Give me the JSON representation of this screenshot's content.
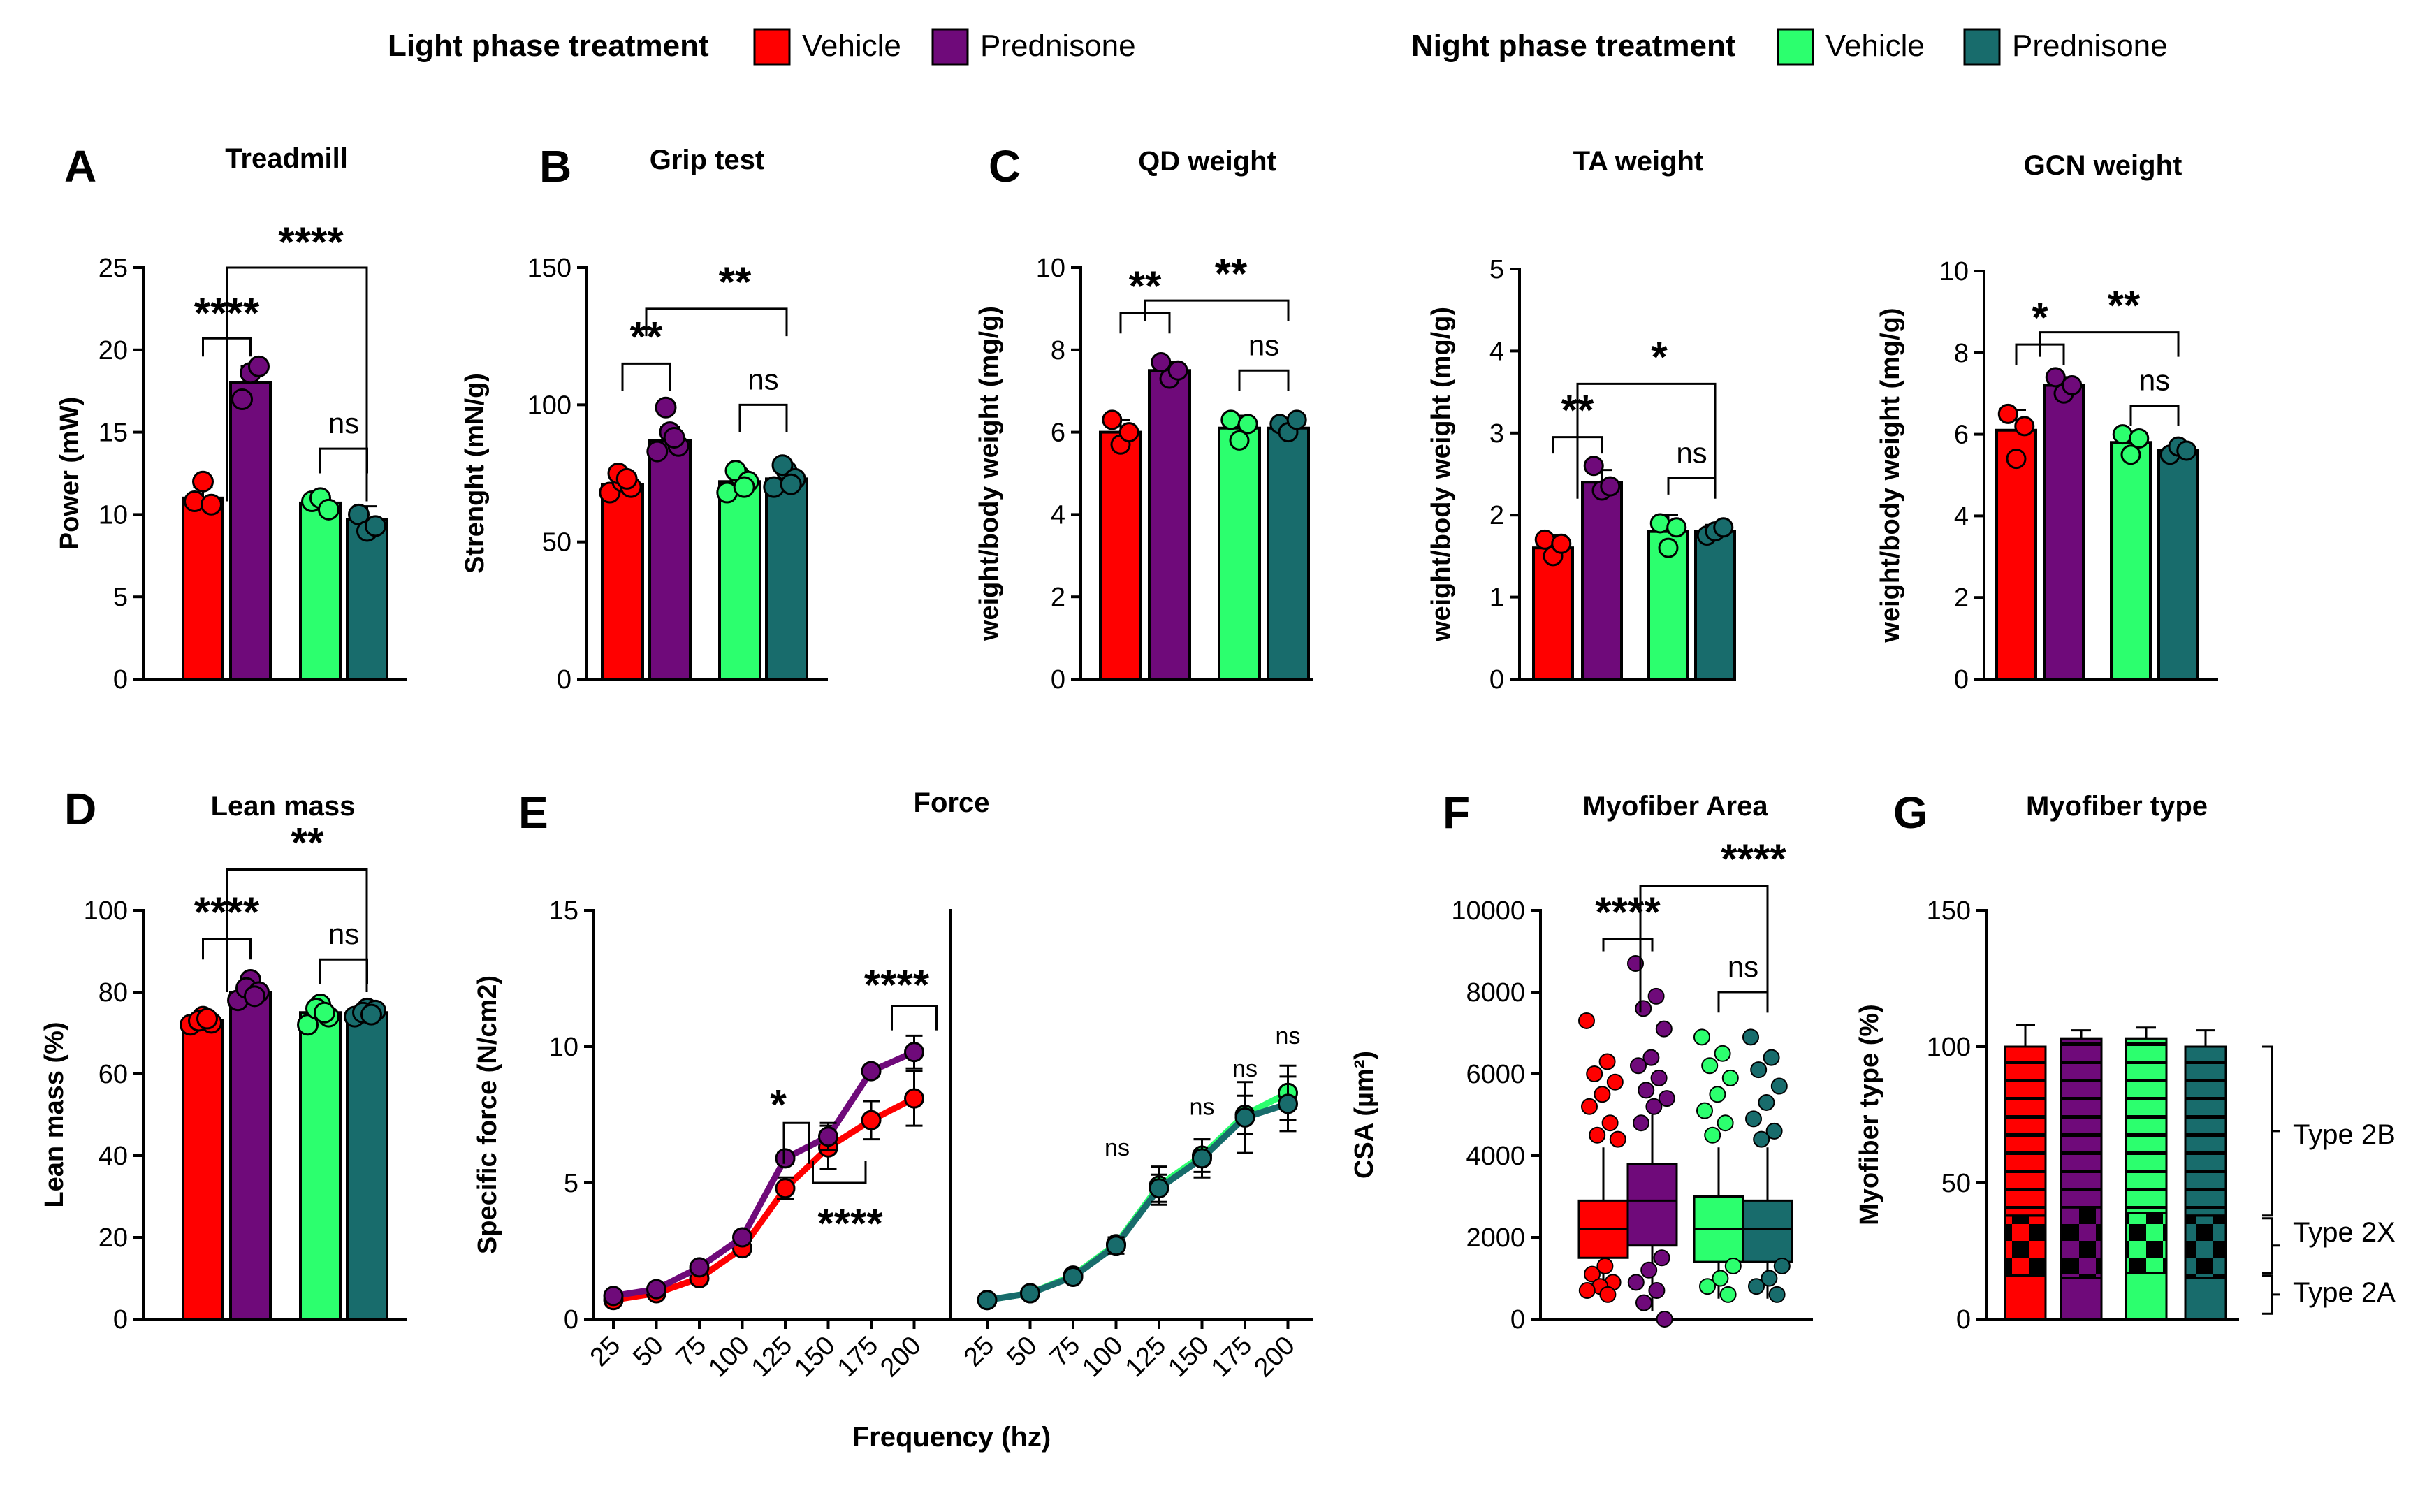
{
  "legend": {
    "light_title": "Light phase treatment",
    "night_title": "Night phase treatment",
    "items": [
      {
        "label": "Vehicle",
        "color": "#ff0000"
      },
      {
        "label": "Prednisone",
        "color": "#6f0a7a"
      },
      {
        "label": "Vehicle",
        "color": "#2cff6e"
      },
      {
        "label": "Prednisone",
        "color": "#186c6c"
      }
    ]
  },
  "colors": {
    "light_vehicle": "#ff0000",
    "light_prednisone": "#6f0a7a",
    "night_vehicle": "#2cff6e",
    "night_prednisone": "#186c6c"
  },
  "panel_letters": [
    "A",
    "B",
    "C",
    "D",
    "E",
    "F",
    "G"
  ],
  "chart_data": [
    {
      "id": "treadmill",
      "type": "bar",
      "letter": "A",
      "title": "Treadmill",
      "ylabel": "Power (mW)",
      "ylim": [
        0,
        25
      ],
      "yticks": [
        "0",
        "5",
        "10",
        "15",
        "20",
        "25"
      ],
      "values": [
        11,
        18,
        10.7,
        9.7
      ],
      "errors": [
        0.7,
        1.0,
        0.4,
        0.8
      ],
      "points": [
        [
          10.8,
          12.0,
          10.6
        ],
        [
          17.0,
          18.6,
          19.0
        ],
        [
          10.8,
          11.0,
          10.3
        ],
        [
          10.0,
          9.0,
          9.3
        ]
      ],
      "annotations": [
        "****",
        "****",
        "ns"
      ]
    },
    {
      "id": "grip",
      "type": "bar",
      "letter": "B",
      "title": "Grip test",
      "ylabel": "Strenght (mN/g)",
      "ylim": [
        0,
        150
      ],
      "yticks": [
        "0",
        "50",
        "100",
        "150"
      ],
      "values": [
        71,
        87,
        72,
        73
      ],
      "errors": [
        3,
        5,
        3,
        3
      ],
      "points": [
        [
          68,
          72,
          75,
          70,
          73
        ],
        [
          83,
          90,
          99,
          85,
          88
        ],
        [
          68,
          74,
          76,
          72,
          70
        ],
        [
          70,
          76,
          78,
          73,
          71
        ]
      ],
      "annotations": [
        "**",
        "**",
        "ns"
      ]
    },
    {
      "id": "qd",
      "type": "bar",
      "letter": "C",
      "title": "QD weight",
      "ylabel": "weight/body weight (mg/g)",
      "ylim": [
        0,
        10
      ],
      "yticks": [
        "0",
        "2",
        "4",
        "6",
        "8",
        "10"
      ],
      "values": [
        6.0,
        7.5,
        6.1,
        6.1
      ],
      "errors": [
        0.3,
        0.2,
        0.3,
        0.2
      ],
      "points": [
        [
          6.3,
          5.7,
          6.0
        ],
        [
          7.7,
          7.3,
          7.5
        ],
        [
          6.3,
          5.8,
          6.2
        ],
        [
          6.2,
          6.0,
          6.3
        ]
      ],
      "annotations": [
        "**",
        "**",
        "ns"
      ]
    },
    {
      "id": "ta",
      "type": "bar",
      "letter": "",
      "title": "TA weight",
      "ylabel": "weight/body weight (mg/g)",
      "ylim": [
        0,
        5
      ],
      "yticks": [
        "0",
        "1",
        "2",
        "3",
        "4",
        "5"
      ],
      "values": [
        1.6,
        2.4,
        1.8,
        1.8
      ],
      "errors": [
        0.15,
        0.15,
        0.2,
        0.08
      ],
      "points": [
        [
          1.7,
          1.5,
          1.65
        ],
        [
          2.6,
          2.3,
          2.35
        ],
        [
          1.9,
          1.6,
          1.85
        ],
        [
          1.75,
          1.8,
          1.85
        ]
      ],
      "annotations": [
        "**",
        "*",
        "ns"
      ]
    },
    {
      "id": "gcn",
      "type": "bar",
      "letter": "",
      "title": "GCN weight",
      "ylabel": "weight/body weight (mg/g)",
      "ylim": [
        0,
        10
      ],
      "yticks": [
        "0",
        "2",
        "4",
        "6",
        "8",
        "10"
      ],
      "values": [
        6.1,
        7.2,
        5.8,
        5.6
      ],
      "errors": [
        0.5,
        0.2,
        0.25,
        0.15
      ],
      "points": [
        [
          6.5,
          5.4,
          6.2
        ],
        [
          7.4,
          7.0,
          7.2
        ],
        [
          6.0,
          5.5,
          5.9
        ],
        [
          5.5,
          5.7,
          5.6
        ]
      ],
      "annotations": [
        "*",
        "**",
        "ns"
      ]
    },
    {
      "id": "lean",
      "type": "bar",
      "letter": "D",
      "title": "Lean mass",
      "ylabel": "Lean mass (%)",
      "ylim": [
        0,
        100
      ],
      "yticks": [
        "0",
        "20",
        "40",
        "60",
        "80",
        "100"
      ],
      "values": [
        73,
        80,
        75,
        75
      ],
      "errors": [
        1,
        2,
        2,
        1
      ],
      "points": [
        [
          72,
          74,
          73,
          72.5,
          73.5
        ],
        [
          78,
          83,
          81,
          80,
          79
        ],
        [
          72,
          77,
          76,
          74,
          75
        ],
        [
          74,
          76,
          75,
          75.5,
          74.5
        ]
      ],
      "annotations": [
        "****",
        "**",
        "ns"
      ]
    },
    {
      "id": "force",
      "type": "line",
      "letter": "E",
      "title": "Force",
      "ylabel": "Specific force (N/cm2)",
      "xlabel": "Frequency (hz)",
      "ylim": [
        0,
        15
      ],
      "yticks": [
        "0",
        "5",
        "10",
        "15"
      ],
      "x": [
        "25",
        "50",
        "75",
        "100",
        "125",
        "150",
        "175",
        "200"
      ],
      "series": [
        {
          "group": "light",
          "color": "#ff0000",
          "values": [
            0.7,
            0.95,
            1.5,
            2.6,
            4.8,
            6.3,
            7.3,
            8.1
          ],
          "errors": [
            0.1,
            0.1,
            0.2,
            0.2,
            0.4,
            0.8,
            0.7,
            1.0
          ]
        },
        {
          "group": "light",
          "color": "#6f0a7a",
          "values": [
            0.85,
            1.1,
            1.9,
            3.0,
            5.9,
            6.7,
            9.1,
            9.8
          ],
          "errors": [
            0.1,
            0.1,
            0.1,
            0.2,
            0.2,
            0.5,
            0.2,
            0.6
          ]
        },
        {
          "group": "night",
          "color": "#2cff6e",
          "values": [
            0.7,
            0.95,
            1.6,
            2.75,
            4.9,
            6.0,
            7.5,
            8.3
          ],
          "errors": [
            0.1,
            0.1,
            0.2,
            0.2,
            0.7,
            0.6,
            0.7,
            1.0
          ]
        },
        {
          "group": "night",
          "color": "#186c6c",
          "values": [
            0.7,
            0.95,
            1.55,
            2.7,
            4.8,
            5.9,
            7.4,
            7.9
          ],
          "errors": [
            0.1,
            0.1,
            0.2,
            0.3,
            0.5,
            0.7,
            1.3,
            1.0
          ]
        }
      ],
      "annotations": [
        "*",
        "****",
        "****",
        "ns",
        "ns",
        "ns",
        "ns"
      ]
    },
    {
      "id": "myofiber_area",
      "type": "box",
      "letter": "F",
      "title": "Myofiber Area",
      "ylabel": "CSA (µm²)",
      "ylim": [
        0,
        10000
      ],
      "yticks": [
        "0",
        "2000",
        "4000",
        "6000",
        "8000",
        "10000"
      ],
      "boxes": [
        {
          "min": 500,
          "q1": 1500,
          "median": 2200,
          "q3": 2900,
          "max": 4200
        },
        {
          "min": 200,
          "q1": 1800,
          "median": 2900,
          "q3": 3800,
          "max": 5000
        },
        {
          "min": 500,
          "q1": 1400,
          "median": 2200,
          "q3": 3000,
          "max": 4200
        },
        {
          "min": 500,
          "q1": 1400,
          "median": 2200,
          "q3": 2900,
          "max": 4200
        }
      ],
      "outliers": [
        [
          7300,
          6300,
          6000,
          5800,
          5500,
          5200,
          4800,
          4500,
          4400,
          1300,
          1100,
          900,
          800,
          700,
          600
        ],
        [
          8700,
          7900,
          7600,
          7100,
          6400,
          6200,
          5900,
          5600,
          5400,
          5200,
          4800,
          1500,
          1200,
          900,
          700,
          400,
          0
        ],
        [
          6900,
          6500,
          6200,
          5900,
          5500,
          5100,
          4800,
          4500,
          1300,
          1000,
          800,
          600
        ],
        [
          6900,
          6400,
          6100,
          5700,
          5300,
          4900,
          4600,
          4400,
          1300,
          1000,
          800,
          600
        ]
      ],
      "annotations": [
        "****",
        "****",
        "ns"
      ]
    },
    {
      "id": "myofiber_type",
      "type": "stacked-bar",
      "letter": "G",
      "title": "Myofiber type",
      "ylabel": "Myofiber type (%)",
      "ylim": [
        0,
        150
      ],
      "yticks": [
        "0",
        "50",
        "100",
        "150"
      ],
      "segments": [
        "Type 2A",
        "Type 2X",
        "Type 2B"
      ],
      "type_labels": [
        "Type 2B",
        "Type 2X",
        "Type 2A"
      ],
      "values": [
        [
          16,
          22,
          62
        ],
        [
          15,
          26,
          62
        ],
        [
          17,
          22,
          64
        ],
        [
          15,
          23,
          62
        ]
      ],
      "errors": [
        8,
        3,
        4,
        6
      ]
    }
  ]
}
